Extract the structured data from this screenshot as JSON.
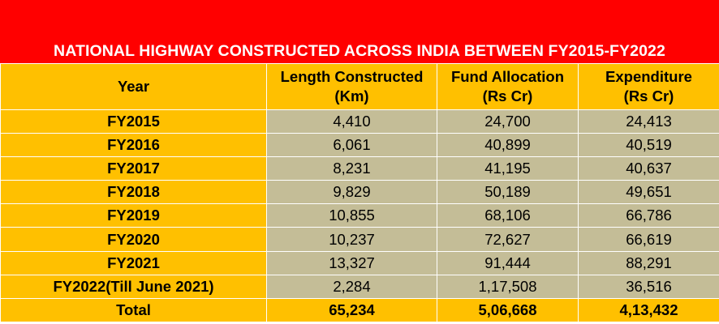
{
  "title": "NATIONAL HIGHWAY CONSTRUCTED ACROSS INDIA BETWEEN FY2015-FY2022",
  "colors": {
    "title_background": "#ff0000",
    "title_text": "#ffffff",
    "header_background": "#ffc000",
    "year_background": "#ffc000",
    "value_background": "#c4bd97",
    "total_background": "#ffc000"
  },
  "headers": {
    "year": "Year",
    "length_line1": "Length Constructed",
    "length_line2": "(Km)",
    "fund_line1": "Fund Allocation",
    "fund_line2": "(Rs Cr)",
    "expenditure_line1": "Expenditure",
    "expenditure_line2": "(Rs Cr)"
  },
  "rows": [
    {
      "year": "FY2015",
      "length": "4,410",
      "fund": "24,700",
      "expenditure": "24,413"
    },
    {
      "year": "FY2016",
      "length": "6,061",
      "fund": "40,899",
      "expenditure": "40,519"
    },
    {
      "year": "FY2017",
      "length": "8,231",
      "fund": "41,195",
      "expenditure": "40,637"
    },
    {
      "year": "FY2018",
      "length": "9,829",
      "fund": "50,189",
      "expenditure": "49,651"
    },
    {
      "year": "FY2019",
      "length": "10,855",
      "fund": "68,106",
      "expenditure": "66,786"
    },
    {
      "year": "FY2020",
      "length": "10,237",
      "fund": "72,627",
      "expenditure": "66,619"
    },
    {
      "year": "FY2021",
      "length": "13,327",
      "fund": "91,444",
      "expenditure": "88,291"
    },
    {
      "year": "FY2022(Till June 2021)",
      "length": "2,284",
      "fund": "1,17,508",
      "expenditure": "36,516"
    }
  ],
  "total": {
    "label": "Total",
    "length": "65,234",
    "fund": "5,06,668",
    "expenditure": "4,13,432"
  }
}
